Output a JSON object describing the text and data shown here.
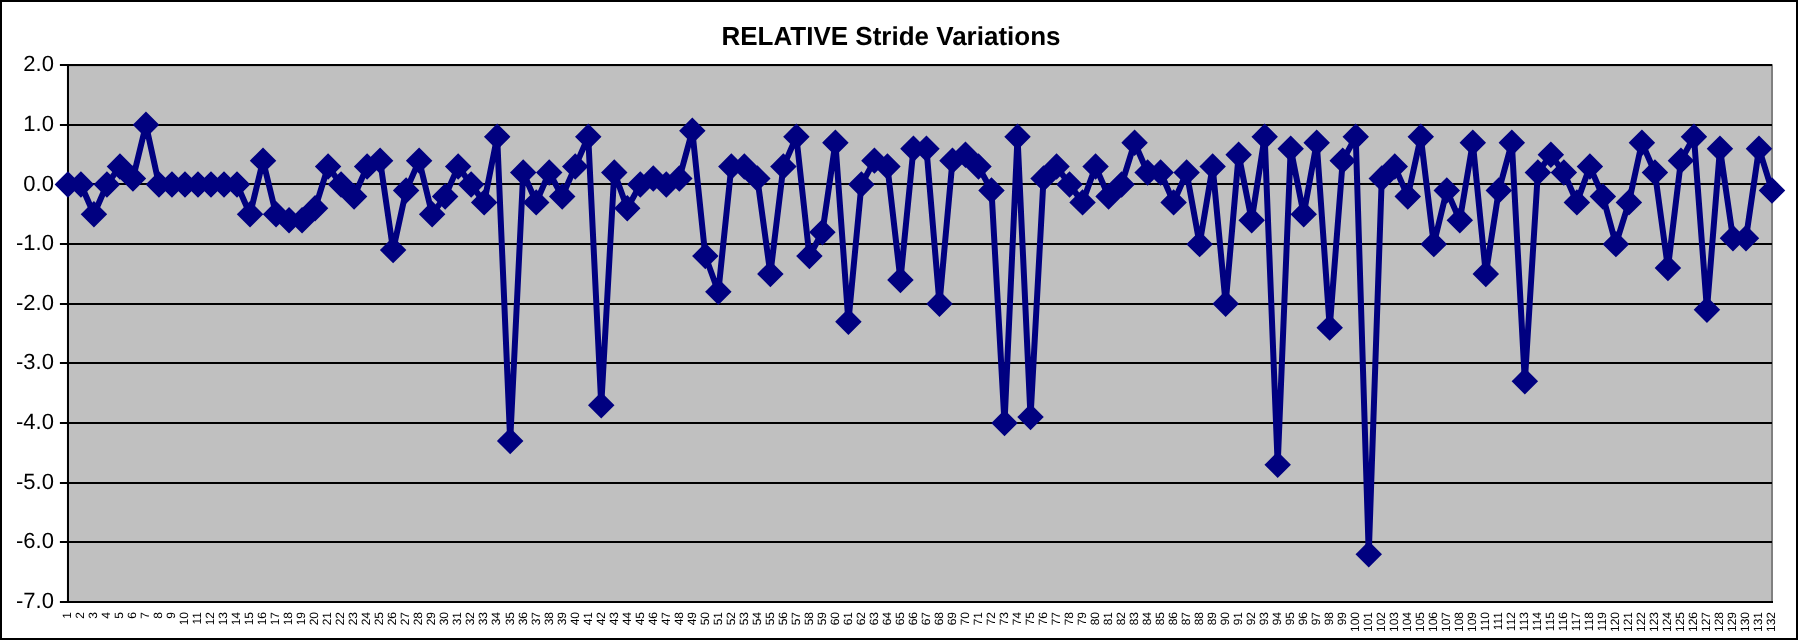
{
  "chart_data": {
    "type": "line",
    "title": "RELATIVE Stride Variations",
    "categories": [
      "1",
      "2",
      "3",
      "4",
      "5",
      "6",
      "7",
      "8",
      "9",
      "10",
      "11",
      "12",
      "13",
      "14",
      "15",
      "16",
      "17",
      "18",
      "19",
      "20",
      "21",
      "22",
      "23",
      "24",
      "25",
      "26",
      "27",
      "28",
      "29",
      "30",
      "31",
      "32",
      "33",
      "34",
      "35",
      "36",
      "37",
      "38",
      "39",
      "40",
      "41",
      "42",
      "43",
      "44",
      "45",
      "46",
      "47",
      "48",
      "49",
      "50",
      "51",
      "52",
      "53",
      "54",
      "55",
      "56",
      "57",
      "58",
      "59",
      "60",
      "61",
      "62",
      "63",
      "64",
      "65",
      "66",
      "67",
      "68",
      "69",
      "70",
      "71",
      "72",
      "73",
      "74",
      "75",
      "76",
      "77",
      "78",
      "79",
      "80",
      "81",
      "82",
      "83",
      "84",
      "85",
      "86",
      "87",
      "88",
      "89",
      "90",
      "91",
      "92",
      "93",
      "94",
      "95",
      "96",
      "97",
      "98",
      "99",
      "100",
      "101",
      "102",
      "103",
      "104",
      "105",
      "106",
      "107",
      "108",
      "109",
      "110",
      "111",
      "112",
      "113",
      "114",
      "115",
      "116",
      "117",
      "118",
      "119",
      "120",
      "121",
      "122",
      "123",
      "124",
      "125",
      "126",
      "127",
      "128",
      "129",
      "130",
      "131",
      "132"
    ],
    "series": [
      {
        "color": "#000080",
        "values": [
          0,
          0,
          -0.5,
          0,
          0.3,
          0.1,
          1.0,
          0,
          0,
          0,
          0,
          0,
          0,
          0,
          -0.5,
          0.4,
          -0.5,
          -0.6,
          -0.6,
          -0.4,
          0.3,
          0,
          -0.2,
          0.3,
          0.4,
          -1.1,
          -0.1,
          0.4,
          -0.5,
          -0.2,
          0.3,
          0,
          -0.3,
          0.8,
          -4.3,
          0.2,
          -0.3,
          0.2,
          -0.2,
          0.3,
          0.8,
          -3.7,
          0.2,
          -0.4,
          0,
          0.1,
          0,
          0.1,
          0.9,
          -1.2,
          -1.8,
          0.3,
          0.3,
          0.1,
          -1.5,
          0.3,
          0.8,
          -1.2,
          -0.8,
          0.7,
          -2.3,
          0,
          0.4,
          0.3,
          -1.6,
          0.6,
          0.6,
          -2.0,
          0.4,
          0.5,
          0.3,
          -0.1,
          -4.0,
          0.8,
          -3.9,
          0.1,
          0.3,
          0,
          -0.3,
          0.3,
          -0.2,
          0,
          0.7,
          0.2,
          0.2,
          -0.3,
          0.2,
          -1.0,
          0.3,
          -2.0,
          0.5,
          -0.6,
          0.8,
          -4.7,
          0.6,
          -0.5,
          0.7,
          -2.4,
          0.4,
          0.8,
          -6.2,
          0.1,
          0.3,
          -0.2,
          0.8,
          -1.0,
          -0.1,
          -0.6,
          0.7,
          -1.5,
          -0.1,
          0.7,
          -3.3,
          0.2,
          0.5,
          0.2,
          -0.3,
          0.3,
          -0.2,
          -1.0,
          -0.3,
          0.7,
          0.2,
          -1.4,
          0.4,
          0.8,
          -2.1,
          0.6,
          -0.9,
          -0.9,
          0.6,
          -0.1
        ]
      }
    ],
    "ylim": [
      -7,
      2
    ],
    "yticks": [
      {
        "value": -7,
        "label": "-7.0"
      },
      {
        "value": -6,
        "label": "-6.0"
      },
      {
        "value": -5,
        "label": "-5.0"
      },
      {
        "value": -4,
        "label": "-4.0"
      },
      {
        "value": -3,
        "label": "-3.0"
      },
      {
        "value": -2,
        "label": "-2.0"
      },
      {
        "value": -1,
        "label": "-1.0"
      },
      {
        "value": 0,
        "label": "0.0"
      },
      {
        "value": 1,
        "label": "1.0"
      },
      {
        "value": 2,
        "label": "2.0"
      }
    ],
    "grid": "y",
    "legend": false,
    "marker": "diamond",
    "line_style": "solid"
  }
}
